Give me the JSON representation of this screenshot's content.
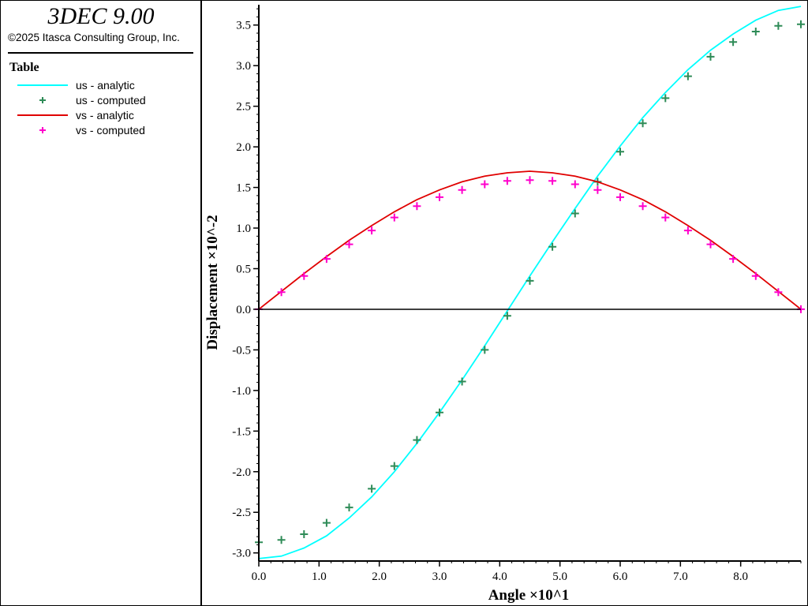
{
  "header": {
    "app_title": "3DEC 9.00",
    "copyright": "©2025 Itasca Consulting Group, Inc."
  },
  "legend": {
    "title": "Table",
    "items": [
      {
        "label": "us - analytic",
        "style": "line",
        "color": "#00FFFF"
      },
      {
        "label": "us - computed",
        "style": "plus",
        "color": "#2E8B57"
      },
      {
        "label": "vs - analytic",
        "style": "line",
        "color": "#E00000"
      },
      {
        "label": "vs - computed",
        "style": "plus",
        "color": "#FF00CC"
      }
    ]
  },
  "chart_data": {
    "type": "line",
    "xlabel": "Angle ×10^1",
    "ylabel": "Displacement ×10^-2",
    "xlim": [
      0,
      9.0
    ],
    "ylim": [
      -3.1,
      3.75
    ],
    "x_ticks": [
      0,
      1,
      2,
      3,
      4,
      5,
      6,
      7,
      8
    ],
    "x_tick_labels": [
      "0.0",
      "1.0",
      "2.0",
      "3.0",
      "4.0",
      "5.0",
      "6.0",
      "7.0",
      "8.0"
    ],
    "y_ticks": [
      -3.0,
      -2.5,
      -2.0,
      -1.5,
      -1.0,
      -0.5,
      0.0,
      0.5,
      1.0,
      1.5,
      2.0,
      2.5,
      3.0,
      3.5
    ],
    "y_tick_labels": [
      "-3.0",
      "-2.5",
      "-2.0",
      "-1.5",
      "-1.0",
      "-0.5",
      "0.0",
      "0.5",
      "1.0",
      "1.5",
      "2.0",
      "2.5",
      "3.0",
      "3.5"
    ],
    "zero_line": true,
    "grid": false,
    "series": [
      {
        "name": "us - analytic",
        "style": "line",
        "color": "#00FFFF",
        "x": [
          0,
          0.375,
          0.75,
          1.125,
          1.5,
          1.875,
          2.25,
          2.625,
          3.0,
          3.375,
          3.75,
          4.125,
          4.5,
          4.875,
          5.25,
          5.625,
          6.0,
          6.375,
          6.75,
          7.125,
          7.5,
          7.875,
          8.25,
          8.625,
          9.0
        ],
        "y": [
          -3.07,
          -3.04,
          -2.94,
          -2.79,
          -2.57,
          -2.31,
          -2.0,
          -1.65,
          -1.27,
          -0.87,
          -0.45,
          -0.02,
          0.41,
          0.83,
          1.24,
          1.64,
          2.01,
          2.36,
          2.67,
          2.95,
          3.19,
          3.39,
          3.56,
          3.68,
          3.73
        ]
      },
      {
        "name": "us - computed",
        "style": "plus",
        "color": "#2E8B57",
        "x": [
          0,
          0.375,
          0.75,
          1.125,
          1.5,
          1.875,
          2.25,
          2.625,
          3.0,
          3.375,
          3.75,
          4.125,
          4.5,
          4.875,
          5.25,
          5.625,
          6.0,
          6.375,
          6.75,
          7.125,
          7.5,
          7.875,
          8.25,
          8.625,
          9.0
        ],
        "y": [
          -2.87,
          -2.84,
          -2.77,
          -2.63,
          -2.44,
          -2.21,
          -1.93,
          -1.61,
          -1.27,
          -0.89,
          -0.5,
          -0.08,
          0.35,
          0.77,
          1.18,
          1.57,
          1.94,
          2.29,
          2.6,
          2.87,
          3.11,
          3.29,
          3.42,
          3.49,
          3.51
        ]
      },
      {
        "name": "vs - analytic",
        "style": "line",
        "color": "#E00000",
        "x": [
          0,
          0.375,
          0.75,
          1.125,
          1.5,
          1.875,
          2.25,
          2.625,
          3.0,
          3.375,
          3.75,
          4.125,
          4.5,
          4.875,
          5.25,
          5.625,
          6.0,
          6.375,
          6.75,
          7.125,
          7.5,
          7.875,
          8.25,
          8.625,
          9.0
        ],
        "y": [
          0,
          0.22,
          0.44,
          0.65,
          0.85,
          1.03,
          1.2,
          1.35,
          1.47,
          1.57,
          1.64,
          1.68,
          1.7,
          1.68,
          1.64,
          1.57,
          1.47,
          1.35,
          1.2,
          1.03,
          0.85,
          0.65,
          0.44,
          0.22,
          0
        ]
      },
      {
        "name": "vs - computed",
        "style": "plus",
        "color": "#FF00CC",
        "x": [
          0,
          0.375,
          0.75,
          1.125,
          1.5,
          1.875,
          2.25,
          2.625,
          3.0,
          3.375,
          3.75,
          4.125,
          4.5,
          4.875,
          5.25,
          5.625,
          6.0,
          6.375,
          6.75,
          7.125,
          7.5,
          7.875,
          8.25,
          8.625,
          9.0
        ],
        "y": [
          0,
          0.21,
          0.41,
          0.62,
          0.8,
          0.97,
          1.13,
          1.27,
          1.38,
          1.47,
          1.54,
          1.58,
          1.59,
          1.58,
          1.54,
          1.47,
          1.38,
          1.27,
          1.13,
          0.97,
          0.8,
          0.62,
          0.41,
          0.21,
          0
        ]
      }
    ]
  }
}
